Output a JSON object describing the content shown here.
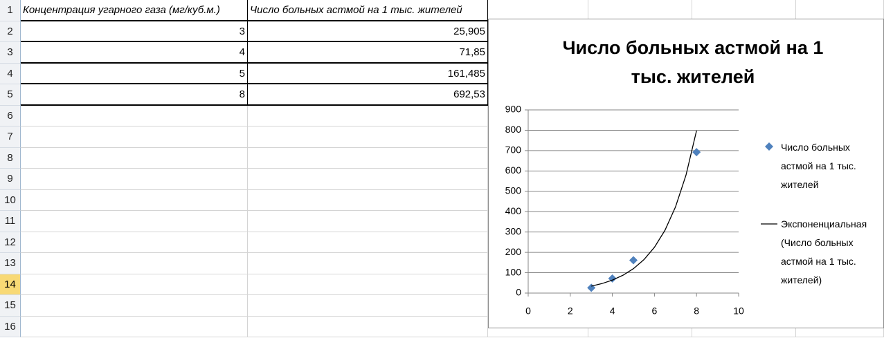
{
  "sheet": {
    "row_numbers": [
      1,
      2,
      3,
      4,
      5,
      6,
      7,
      8,
      9,
      10,
      11,
      12,
      13,
      14,
      15,
      16
    ],
    "header": [
      "Концентрация угарного газа (мг/куб.м.)",
      "Число больных астмой на 1 тыс. жителей"
    ],
    "rows": [
      [
        "3",
        "25,905"
      ],
      [
        "4",
        "71,85"
      ],
      [
        "5",
        "161,485"
      ],
      [
        "8",
        "692,53"
      ]
    ]
  },
  "chart_data": {
    "type": "scatter",
    "title": "Число больных астмой на 1 тыс. жителей",
    "x": [
      3,
      4,
      5,
      8
    ],
    "series": [
      {
        "name": "Число больных астмой на 1 тыс. жителей",
        "color": "#4f81bd",
        "values": [
          25.905,
          71.85,
          161.485,
          692.53
        ]
      },
      {
        "name": "Экспоненциальная (Число больных астмой на 1 тыс. жителей)",
        "type": "line",
        "color": "#000000",
        "x": [
          3,
          3.5,
          4,
          4.5,
          5,
          5.5,
          6,
          6.5,
          7,
          7.5,
          8
        ],
        "values": [
          34,
          46.5,
          63.8,
          87.4,
          119.8,
          164.2,
          225.2,
          308.6,
          423,
          580,
          798
        ]
      }
    ],
    "xlim": [
      0,
      10
    ],
    "xticks": [
      0,
      2,
      4,
      6,
      8,
      10
    ],
    "ylim": [
      0,
      900
    ],
    "yticks": [
      0,
      100,
      200,
      300,
      400,
      500,
      600,
      700,
      800,
      900
    ],
    "grid": true,
    "legend": "right"
  }
}
